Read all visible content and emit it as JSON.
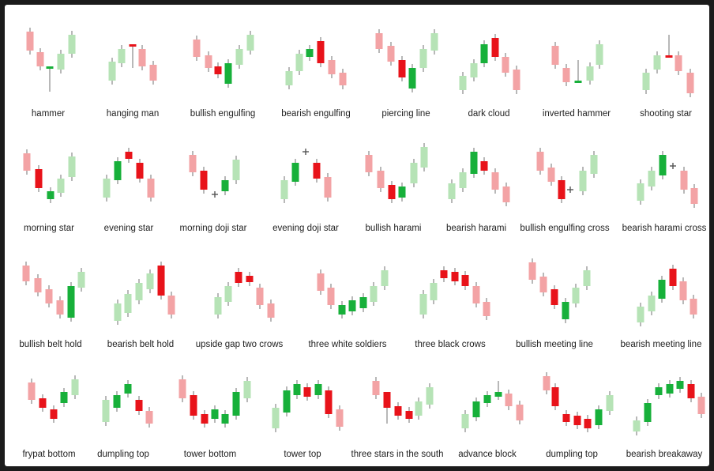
{
  "colors": {
    "bull_strong": "#17b03a",
    "bull_light": "#b6e3b6",
    "bear_strong": "#e8131a",
    "bear_light": "#f3a3a5",
    "wick": "#888888",
    "doji_mark": "#555555",
    "label": "#222222"
  },
  "patterns": [
    "hammer",
    "hanging man",
    "bullish engulfing",
    "bearish engulfing",
    "piercing line",
    "dark cloud",
    "inverted hammer",
    "shooting star",
    "morning star",
    "evening star",
    "morning doji star",
    "evening doji star",
    "bullish harami",
    "bearish harami",
    "bullish engulfing cross",
    "bearish harami cross",
    "bullish belt hold",
    "bearish belt hold",
    "upside gap two crows",
    "three white soldiers",
    "three black crows",
    "bullish meeting line",
    "bearish meeting line",
    "frypat bottom",
    "dumpling top",
    "tower bottom",
    "tower top",
    "three stars in the south",
    "advance block",
    "dumpling top",
    "bearish breakaway"
  ]
}
